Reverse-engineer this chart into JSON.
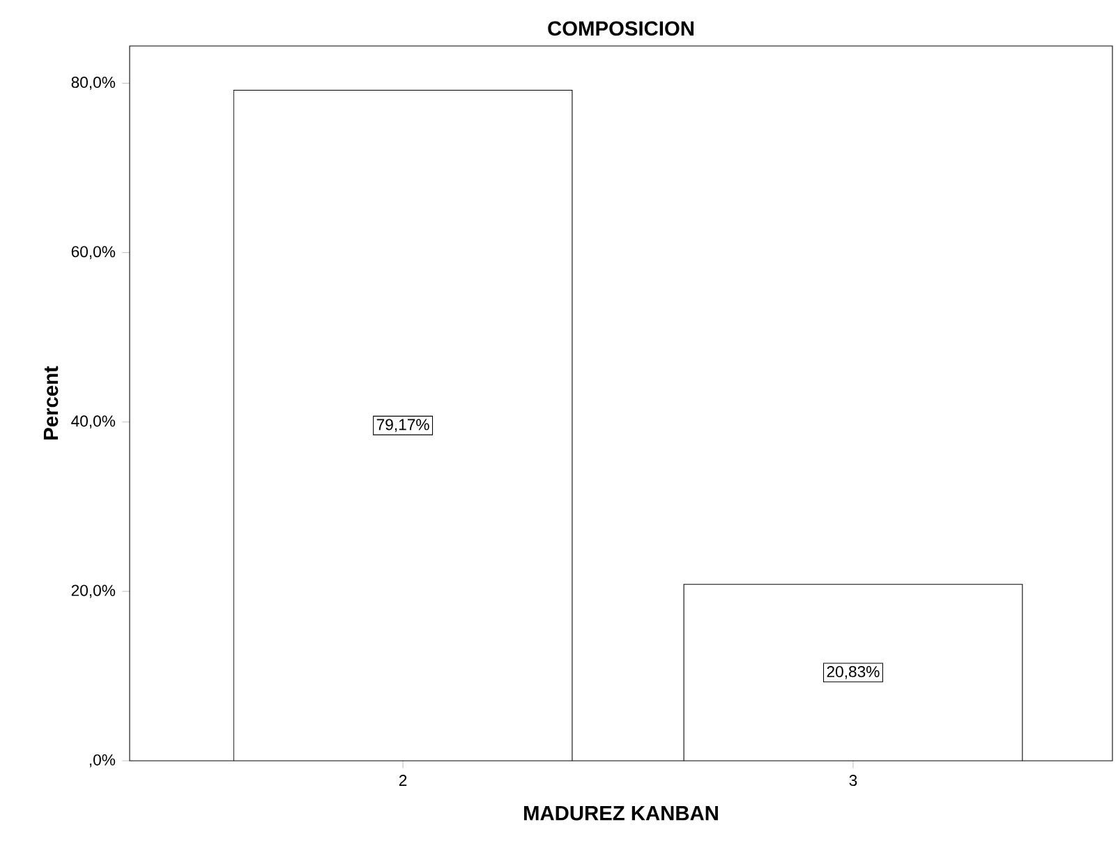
{
  "chart_data": {
    "type": "bar",
    "title": "COMPOSICION",
    "xlabel": "MADUREZ KANBAN",
    "ylabel": "Percent",
    "categories": [
      "2",
      "3"
    ],
    "values": [
      79.17,
      20.83
    ],
    "value_labels": [
      "79,17%",
      "20,83%"
    ],
    "color": "#ffffff",
    "ylim": [
      0,
      84.4
    ],
    "yticks": [
      {
        "value": 0,
        "label": ",0%"
      },
      {
        "value": 20,
        "label": "20,0%"
      },
      {
        "value": 40,
        "label": "40,0%"
      },
      {
        "value": 60,
        "label": "60,0%"
      },
      {
        "value": 80,
        "label": "80,0%"
      }
    ],
    "grid": false
  }
}
